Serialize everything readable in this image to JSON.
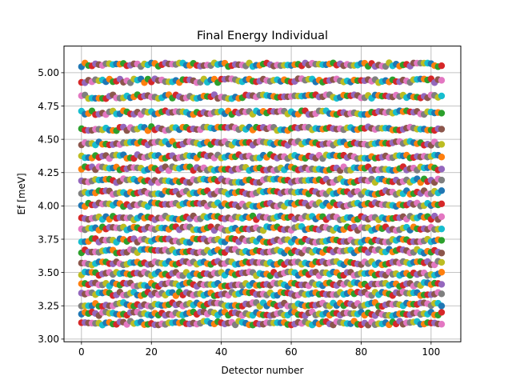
{
  "chart_data": {
    "type": "scatter",
    "title": "Final Energy Individual",
    "xlabel": "Detector number",
    "ylabel": "Ef [meV]",
    "xlim": [
      -5,
      108.5
    ],
    "ylim": [
      2.98,
      5.2
    ],
    "xticks": [
      0,
      20,
      40,
      60,
      80,
      100
    ],
    "xtick_labels": [
      "0",
      "20",
      "40",
      "60",
      "80",
      "100"
    ],
    "yticks": [
      3.0,
      3.25,
      3.5,
      3.75,
      4.0,
      4.25,
      4.5,
      4.75,
      5.0
    ],
    "ytick_labels": [
      "3.00",
      "3.25",
      "3.50",
      "3.75",
      "4.00",
      "4.25",
      "4.50",
      "4.75",
      "5.00"
    ],
    "grid": true,
    "x": {
      "start": 0,
      "stop": 103,
      "step": 1
    },
    "series_levels": [
      5.06,
      4.94,
      4.82,
      4.7,
      4.58,
      4.47,
      4.37,
      4.28,
      4.19,
      4.1,
      4.01,
      3.91,
      3.83,
      3.74,
      3.66,
      3.57,
      3.49,
      3.41,
      3.34,
      3.26,
      3.19,
      3.12
    ],
    "series_note_values": "each series is approximately constant across detectors (about +/-0.02 meV)",
    "colors": [
      "#1f77b4",
      "#ff7f0e",
      "#2ca02c",
      "#d62728",
      "#9467bd",
      "#8c564b",
      "#e377c2",
      "#7f7f7f",
      "#bcbd22",
      "#17becf"
    ]
  }
}
